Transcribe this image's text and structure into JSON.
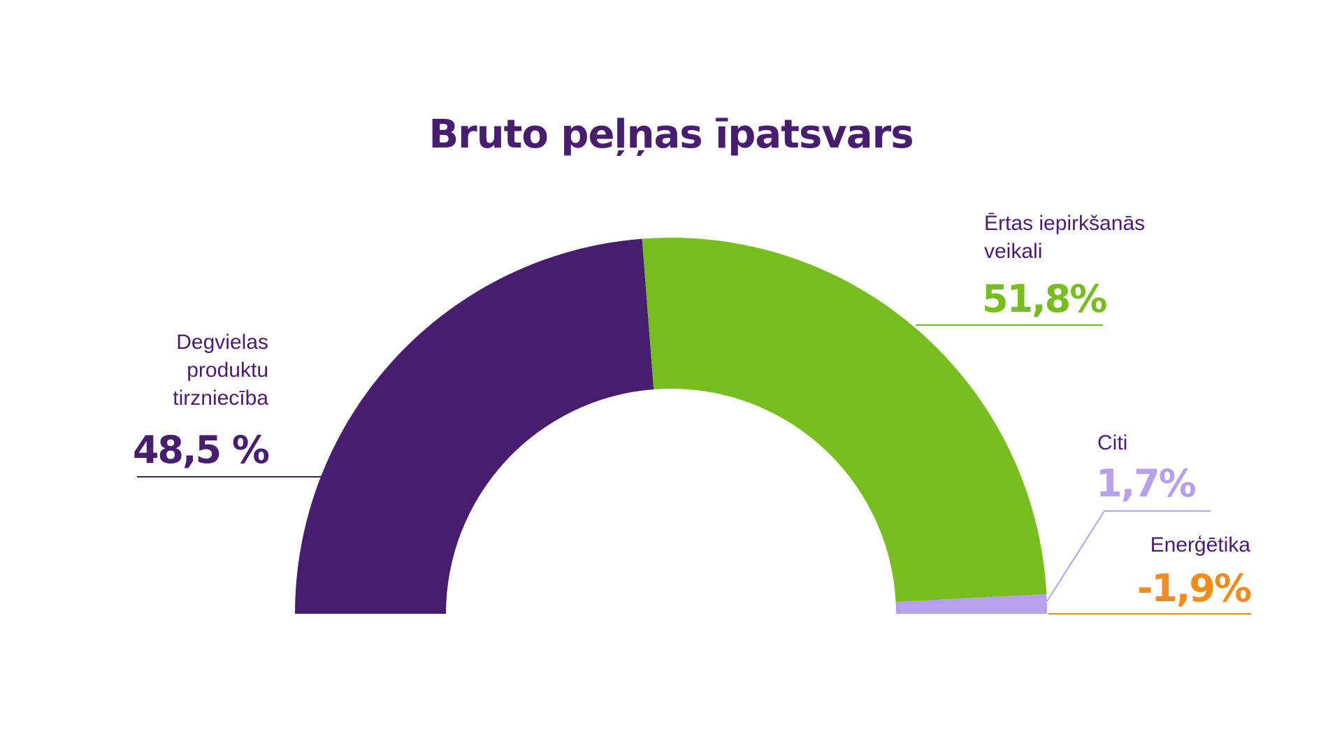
{
  "chart_data": {
    "type": "pie",
    "title": "Bruto peļņas īpatsvars",
    "segments": [
      {
        "label_lines": [
          "Degvielas",
          "produktu",
          "tirzniecība"
        ],
        "value": 48.5,
        "value_text": "48,5 %",
        "color": "#471e6e"
      },
      {
        "label_lines": [
          "Ērtas iepirkšanās",
          "veikali"
        ],
        "value": 51.8,
        "value_text": "51,8%",
        "color": "#78bd20"
      },
      {
        "label_lines": [
          "Citi"
        ],
        "value": 1.7,
        "value_text": "1,7%",
        "color": "#b4a0eb"
      },
      {
        "label_lines": [
          "Enerģētika"
        ],
        "value": -1.9,
        "value_text": "-1,9%",
        "color": "#ee8c1e"
      }
    ]
  }
}
